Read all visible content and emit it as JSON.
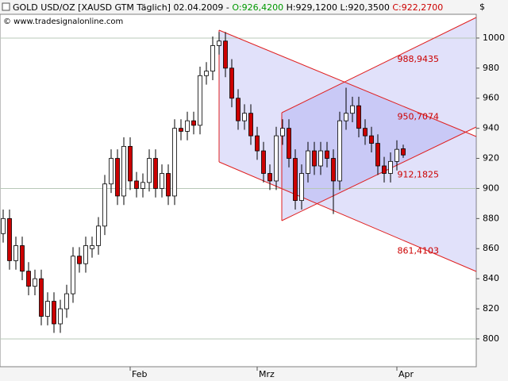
{
  "chart_data": {
    "type": "candlestick",
    "title": "GOLD USD/OZ [XAUSD GTM  Täglich] 02.04.2009 -",
    "ohlc_labels": [
      "O:926,4200",
      "H:929,1200",
      "L:920,3500",
      "C:922,2700"
    ],
    "source": "© www.tradesignalonline.com",
    "currency": "$",
    "categories": [
      null,
      null,
      null,
      null,
      null,
      null,
      null,
      null,
      null,
      null,
      null,
      null,
      null,
      null,
      null,
      null,
      null,
      null,
      null,
      null,
      "Feb",
      null,
      null,
      null,
      null,
      null,
      null,
      null,
      null,
      null,
      null,
      null,
      null,
      null,
      null,
      null,
      null,
      null,
      null,
      null,
      "Mrz",
      null,
      null,
      null,
      null,
      null,
      null,
      null,
      null,
      null,
      null,
      null,
      null,
      null,
      null,
      null,
      null,
      null,
      null,
      null,
      null,
      null,
      "Apr",
      null
    ],
    "open": [
      870,
      880,
      852,
      862,
      845,
      835,
      840,
      815,
      825,
      810,
      820,
      830,
      855,
      850,
      860,
      862,
      875,
      903,
      920,
      895,
      928,
      905,
      900,
      904,
      920,
      900,
      910,
      895,
      940,
      938,
      945,
      942,
      975,
      978,
      995,
      998,
      980,
      960,
      945,
      950,
      935,
      925,
      910,
      905,
      935,
      940,
      920,
      892,
      910,
      925,
      915,
      925,
      920,
      905,
      945,
      950,
      955,
      940,
      935,
      930,
      915,
      910,
      918,
      926.42
    ],
    "high": [
      886,
      886,
      868,
      868,
      851,
      846,
      846,
      831,
      831,
      826,
      836,
      861,
      861,
      868,
      868,
      881,
      909,
      926,
      926,
      934,
      934,
      911,
      910,
      926,
      926,
      916,
      916,
      946,
      946,
      951,
      951,
      981,
      984,
      1001,
      1004,
      1004,
      986,
      966,
      956,
      956,
      941,
      931,
      916,
      941,
      946,
      946,
      926,
      916,
      931,
      931,
      931,
      931,
      926,
      951,
      967,
      961,
      961,
      946,
      941,
      936,
      921,
      924,
      932,
      929.12
    ],
    "low": [
      864,
      846,
      846,
      839,
      829,
      829,
      809,
      809,
      804,
      804,
      814,
      824,
      844,
      844,
      854,
      856,
      869,
      897,
      889,
      889,
      899,
      894,
      894,
      898,
      894,
      894,
      889,
      889,
      932,
      932,
      936,
      936,
      969,
      972,
      989,
      974,
      954,
      939,
      939,
      929,
      919,
      904,
      899,
      899,
      929,
      914,
      886,
      886,
      904,
      909,
      909,
      914,
      883,
      899,
      939,
      944,
      934,
      929,
      924,
      909,
      904,
      904,
      912,
      920.35
    ],
    "close": [
      880,
      852,
      862,
      845,
      835,
      840,
      815,
      825,
      810,
      820,
      830,
      855,
      850,
      862,
      862,
      875,
      903,
      920,
      895,
      928,
      905,
      900,
      904,
      920,
      900,
      910,
      895,
      940,
      938,
      945,
      942,
      975,
      978,
      995,
      998,
      980,
      960,
      945,
      950,
      935,
      925,
      910,
      905,
      935,
      940,
      920,
      892,
      910,
      925,
      915,
      925,
      920,
      905,
      945,
      950,
      955,
      940,
      935,
      930,
      915,
      910,
      918,
      926,
      922.27
    ],
    "up_color": "#ffffff",
    "down_color": "#cc0000",
    "ylim": [
      781.5,
      1015.8
    ],
    "yticks": [
      800,
      820,
      840,
      860,
      880,
      900,
      920,
      940,
      960,
      980,
      1000
    ],
    "ygrid": [
      800,
      900,
      1000
    ],
    "annotations": [
      {
        "value": 988.9435,
        "label": "988,9435"
      },
      {
        "value": 950.7074,
        "label": "950,7074"
      },
      {
        "value": 912.1825,
        "label": "912,1825"
      },
      {
        "value": 861.4103,
        "label": "861,4103"
      }
    ]
  }
}
